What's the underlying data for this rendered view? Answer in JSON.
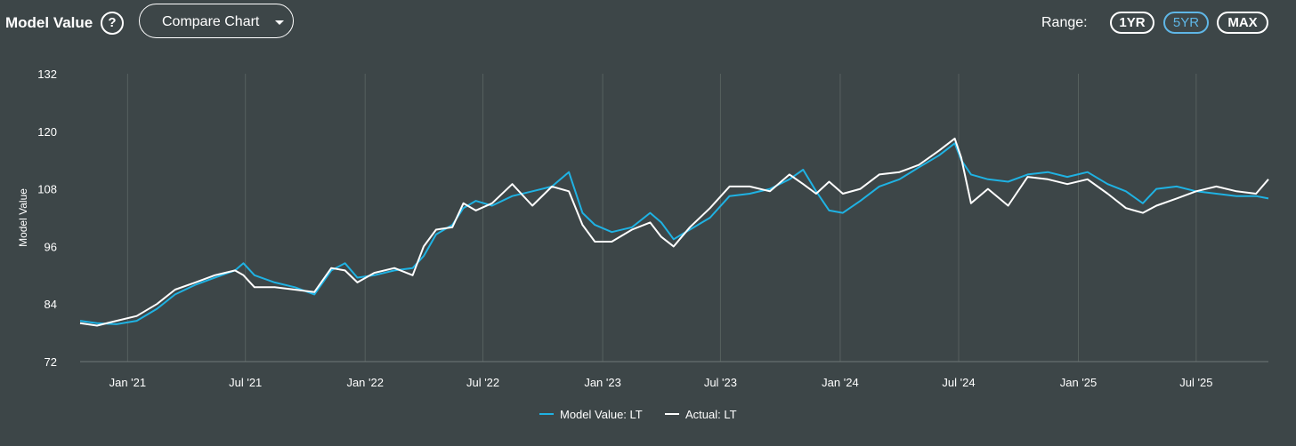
{
  "header": {
    "title": "Model Value",
    "help_icon": "question-circle-icon",
    "compare_button": {
      "label": "Compare Chart",
      "icon": "caret-down-icon"
    },
    "range": {
      "label": "Range:",
      "options": [
        {
          "label": "1YR",
          "active": false
        },
        {
          "label": "5YR",
          "active": true
        },
        {
          "label": "MAX",
          "active": false
        }
      ],
      "active_color": "#5fb6e6"
    }
  },
  "chart_data": {
    "type": "line",
    "ylabel": "Model Value",
    "xlabel": "",
    "ylim": [
      72,
      132
    ],
    "y_ticks": [
      "72",
      "84",
      "96",
      "108",
      "120",
      "132"
    ],
    "x_ticks": [
      "Jan '21",
      "Jul '21",
      "Jan '22",
      "Jul '22",
      "Jan '23",
      "Jul '23",
      "Jan '24",
      "Jul '24",
      "Jan '25",
      "Jul '25"
    ],
    "x_tick_dates": [
      "2021-01-01",
      "2021-07-01",
      "2022-01-01",
      "2022-07-01",
      "2023-01-01",
      "2023-07-01",
      "2024-01-01",
      "2024-07-01",
      "2025-01-01",
      "2025-07-01"
    ],
    "xlim": [
      "2020-10-20",
      "2025-10-20"
    ],
    "grid": "vertical",
    "legend_position": "bottom",
    "background_color": "#3d4648",
    "series": [
      {
        "name": "Model Value: LT",
        "color": "#1fb2e3",
        "points": [
          [
            "2020-10-20",
            80.5
          ],
          [
            "2020-11-15",
            80.0
          ],
          [
            "2020-12-15",
            79.8
          ],
          [
            "2021-01-15",
            80.5
          ],
          [
            "2021-02-15",
            83.0
          ],
          [
            "2021-03-15",
            86.0
          ],
          [
            "2021-04-15",
            88.0
          ],
          [
            "2021-05-15",
            89.5
          ],
          [
            "2021-06-15",
            91.0
          ],
          [
            "2021-06-28",
            92.5
          ],
          [
            "2021-07-15",
            90.0
          ],
          [
            "2021-08-15",
            88.5
          ],
          [
            "2021-09-15",
            87.5
          ],
          [
            "2021-10-15",
            86.0
          ],
          [
            "2021-11-10",
            91.0
          ],
          [
            "2021-12-01",
            92.5
          ],
          [
            "2021-12-20",
            89.5
          ],
          [
            "2022-01-15",
            90.0
          ],
          [
            "2022-02-15",
            91.0
          ],
          [
            "2022-03-15",
            91.5
          ],
          [
            "2022-04-01",
            94.0
          ],
          [
            "2022-04-20",
            98.5
          ],
          [
            "2022-05-15",
            100.5
          ],
          [
            "2022-06-01",
            104.0
          ],
          [
            "2022-06-20",
            105.5
          ],
          [
            "2022-07-15",
            104.5
          ],
          [
            "2022-08-15",
            106.5
          ],
          [
            "2022-09-15",
            107.5
          ],
          [
            "2022-10-15",
            108.5
          ],
          [
            "2022-11-10",
            111.5
          ],
          [
            "2022-12-01",
            103.0
          ],
          [
            "2022-12-20",
            100.5
          ],
          [
            "2023-01-15",
            99.0
          ],
          [
            "2023-02-15",
            100.0
          ],
          [
            "2023-03-15",
            103.0
          ],
          [
            "2023-04-01",
            101.0
          ],
          [
            "2023-04-20",
            97.5
          ],
          [
            "2023-05-15",
            99.5
          ],
          [
            "2023-06-15",
            102.0
          ],
          [
            "2023-07-15",
            106.5
          ],
          [
            "2023-08-15",
            107.0
          ],
          [
            "2023-09-15",
            108.0
          ],
          [
            "2023-10-15",
            110.0
          ],
          [
            "2023-11-05",
            112.0
          ],
          [
            "2023-11-25",
            107.5
          ],
          [
            "2023-12-15",
            103.5
          ],
          [
            "2024-01-05",
            103.0
          ],
          [
            "2024-02-01",
            105.5
          ],
          [
            "2024-03-01",
            108.5
          ],
          [
            "2024-04-01",
            110.0
          ],
          [
            "2024-05-01",
            112.5
          ],
          [
            "2024-06-01",
            115.0
          ],
          [
            "2024-06-25",
            117.5
          ],
          [
            "2024-07-05",
            114.0
          ],
          [
            "2024-07-20",
            111.0
          ],
          [
            "2024-08-15",
            110.0
          ],
          [
            "2024-09-15",
            109.5
          ],
          [
            "2024-10-15",
            111.0
          ],
          [
            "2024-11-15",
            111.5
          ],
          [
            "2024-12-15",
            110.5
          ],
          [
            "2025-01-15",
            111.5
          ],
          [
            "2025-02-15",
            109.0
          ],
          [
            "2025-03-15",
            107.5
          ],
          [
            "2025-04-10",
            105.0
          ],
          [
            "2025-05-01",
            108.0
          ],
          [
            "2025-06-01",
            108.5
          ],
          [
            "2025-07-01",
            107.5
          ],
          [
            "2025-08-01",
            107.0
          ],
          [
            "2025-09-01",
            106.5
          ],
          [
            "2025-10-01",
            106.5
          ],
          [
            "2025-10-20",
            106.0
          ]
        ]
      },
      {
        "name": "Actual: LT",
        "color": "#ffffff",
        "points": [
          [
            "2020-10-20",
            80.0
          ],
          [
            "2020-11-15",
            79.5
          ],
          [
            "2020-12-15",
            80.5
          ],
          [
            "2021-01-15",
            81.5
          ],
          [
            "2021-02-15",
            84.0
          ],
          [
            "2021-03-15",
            87.0
          ],
          [
            "2021-04-15",
            88.5
          ],
          [
            "2021-05-15",
            90.0
          ],
          [
            "2021-06-15",
            91.0
          ],
          [
            "2021-06-28",
            90.0
          ],
          [
            "2021-07-15",
            87.5
          ],
          [
            "2021-08-15",
            87.5
          ],
          [
            "2021-09-15",
            87.0
          ],
          [
            "2021-10-15",
            86.5
          ],
          [
            "2021-11-10",
            91.5
          ],
          [
            "2021-12-01",
            91.0
          ],
          [
            "2021-12-20",
            88.5
          ],
          [
            "2022-01-15",
            90.5
          ],
          [
            "2022-02-15",
            91.5
          ],
          [
            "2022-03-15",
            90.0
          ],
          [
            "2022-04-01",
            96.0
          ],
          [
            "2022-04-20",
            99.5
          ],
          [
            "2022-05-15",
            100.0
          ],
          [
            "2022-06-01",
            105.0
          ],
          [
            "2022-06-20",
            103.5
          ],
          [
            "2022-07-15",
            105.0
          ],
          [
            "2022-08-15",
            109.0
          ],
          [
            "2022-09-15",
            104.5
          ],
          [
            "2022-10-15",
            108.5
          ],
          [
            "2022-11-10",
            107.5
          ],
          [
            "2022-12-01",
            100.5
          ],
          [
            "2022-12-20",
            97.0
          ],
          [
            "2023-01-15",
            97.0
          ],
          [
            "2023-02-15",
            99.5
          ],
          [
            "2023-03-15",
            101.0
          ],
          [
            "2023-04-01",
            98.0
          ],
          [
            "2023-04-20",
            96.0
          ],
          [
            "2023-05-15",
            100.0
          ],
          [
            "2023-06-15",
            104.0
          ],
          [
            "2023-07-15",
            108.5
          ],
          [
            "2023-08-15",
            108.5
          ],
          [
            "2023-09-15",
            107.5
          ],
          [
            "2023-10-15",
            111.0
          ],
          [
            "2023-11-05",
            109.0
          ],
          [
            "2023-11-25",
            107.0
          ],
          [
            "2023-12-15",
            109.5
          ],
          [
            "2024-01-05",
            107.0
          ],
          [
            "2024-02-01",
            108.0
          ],
          [
            "2024-03-01",
            111.0
          ],
          [
            "2024-04-01",
            111.5
          ],
          [
            "2024-05-01",
            113.0
          ],
          [
            "2024-06-01",
            116.0
          ],
          [
            "2024-06-25",
            118.5
          ],
          [
            "2024-07-05",
            114.5
          ],
          [
            "2024-07-20",
            105.0
          ],
          [
            "2024-08-15",
            108.0
          ],
          [
            "2024-09-15",
            104.5
          ],
          [
            "2024-10-15",
            110.5
          ],
          [
            "2024-11-15",
            110.0
          ],
          [
            "2024-12-15",
            109.0
          ],
          [
            "2025-01-15",
            110.0
          ],
          [
            "2025-02-15",
            107.0
          ],
          [
            "2025-03-15",
            104.0
          ],
          [
            "2025-04-10",
            103.0
          ],
          [
            "2025-05-01",
            104.5
          ],
          [
            "2025-06-01",
            106.0
          ],
          [
            "2025-07-01",
            107.5
          ],
          [
            "2025-08-01",
            108.5
          ],
          [
            "2025-09-01",
            107.5
          ],
          [
            "2025-10-01",
            107.0
          ],
          [
            "2025-10-20",
            110.0
          ]
        ]
      }
    ]
  }
}
